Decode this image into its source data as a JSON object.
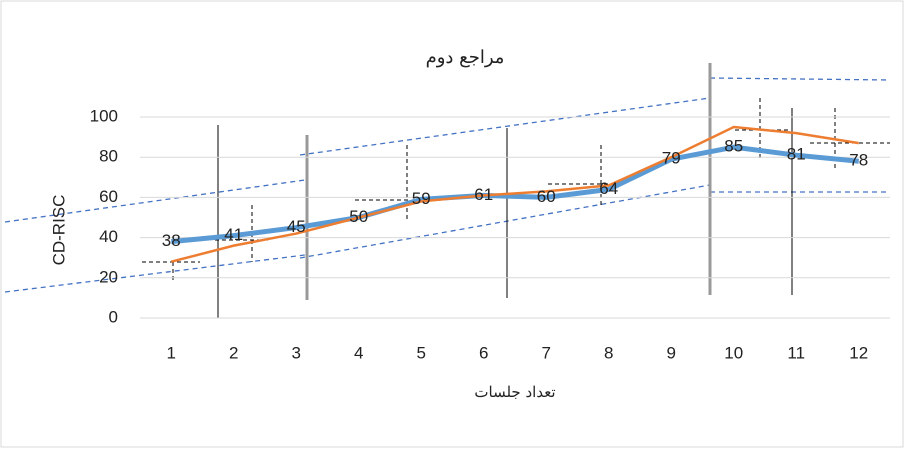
{
  "chart_data": {
    "type": "line",
    "title": "مراجع دوم",
    "x_label": "تعداد جلسات",
    "y_label": "CD-RISC",
    "categories": [
      "1",
      "2",
      "3",
      "4",
      "5",
      "6",
      "7",
      "8",
      "9",
      "10",
      "11",
      "12"
    ],
    "series": [
      {
        "color": "#5b9bd5",
        "values": [
          38,
          41,
          45,
          50,
          59,
          61,
          60,
          64,
          79,
          85,
          81,
          78
        ]
      },
      {
        "color": "#ed7d31",
        "values": [
          28,
          36,
          42,
          50,
          58,
          61,
          63,
          66,
          80,
          95,
          92,
          87
        ]
      }
    ],
    "ylim": [
      0,
      100
    ],
    "yticks": [
      0,
      20,
      40,
      60,
      80,
      100
    ],
    "grid": true
  }
}
